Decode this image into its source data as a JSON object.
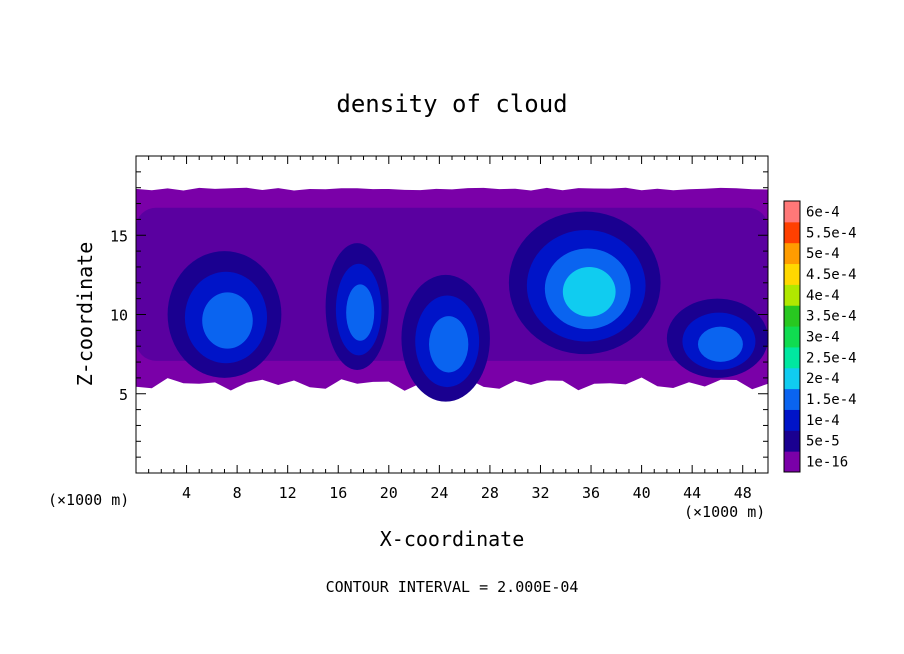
{
  "chart_data": {
    "type": "heatmap",
    "title": "density of cloud",
    "xlabel": "X-coordinate",
    "ylabel": "Z-coordinate",
    "x_unit_label": "(×1000 m)",
    "y_unit_label": "(×1000 m)",
    "xlim": [
      0,
      50
    ],
    "ylim": [
      0,
      20
    ],
    "x_ticks": [
      4,
      8,
      12,
      16,
      20,
      24,
      28,
      32,
      36,
      40,
      44,
      48
    ],
    "y_ticks": [
      5,
      10,
      15
    ],
    "footer": "CONTOUR INTERVAL = 2.000E-04",
    "colorbar": {
      "labels": [
        "1e-16",
        "5e-5",
        "1e-4",
        "1.5e-4",
        "2e-4",
        "2.5e-4",
        "3e-4",
        "3.5e-4",
        "4e-4",
        "4.5e-4",
        "5e-4",
        "5.5e-4",
        "6e-4"
      ],
      "colors": [
        "#7A00A8",
        "#1A0090",
        "#0014C8",
        "#0A64F0",
        "#10CCF0",
        "#00E8A0",
        "#10DC50",
        "#28C820",
        "#B0E800",
        "#FFD800",
        "#FF9C00",
        "#FF4000",
        "#FF7878"
      ]
    },
    "features": {
      "cloud_layer": {
        "z_range": [
          5.5,
          18
        ],
        "level": "1e-16"
      },
      "blobs": [
        {
          "x": 7,
          "z": 10,
          "rx": 4.5,
          "rz": 4,
          "peak": "1.5e-4"
        },
        {
          "x": 17.5,
          "z": 10.5,
          "rx": 2.5,
          "rz": 4,
          "peak": "1.5e-4"
        },
        {
          "x": 24.5,
          "z": 8.5,
          "rx": 3.5,
          "rz": 4,
          "peak": "1.5e-4"
        },
        {
          "x": 35.5,
          "z": 12,
          "rx": 6,
          "rz": 4.5,
          "peak": "2e-4"
        },
        {
          "x": 46,
          "z": 8.5,
          "rx": 4,
          "rz": 2.5,
          "peak": "1.5e-4"
        }
      ]
    }
  }
}
